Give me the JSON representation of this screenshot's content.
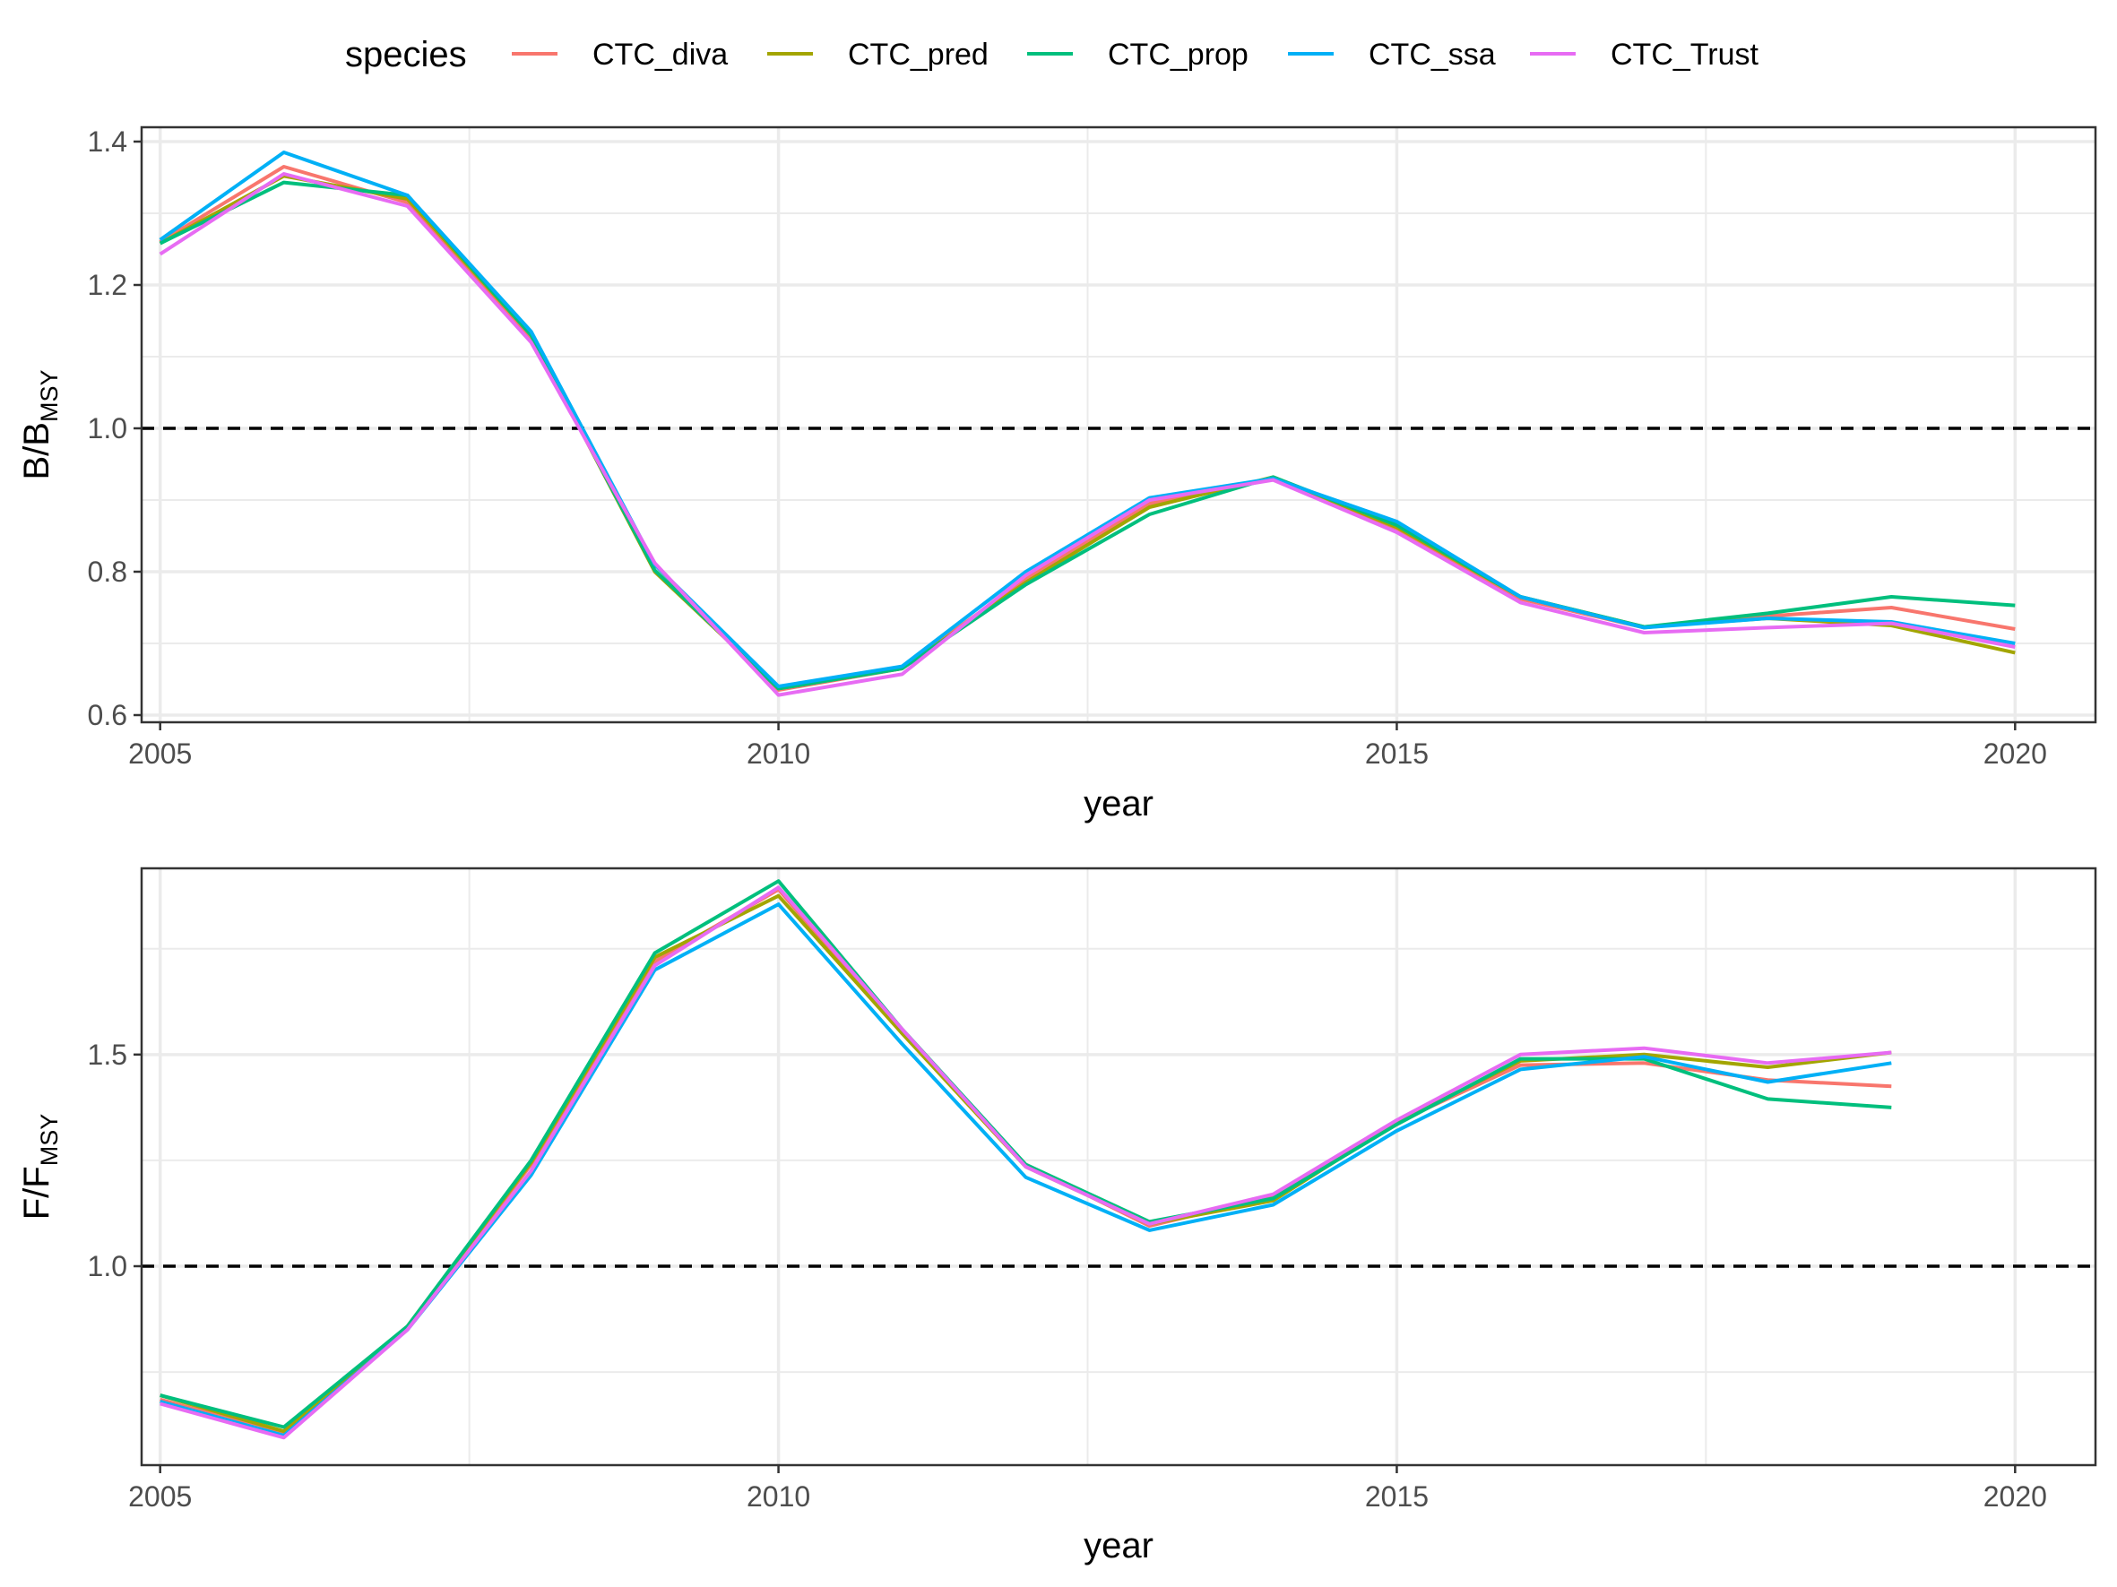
{
  "legend": {
    "title": "species"
  },
  "chart_data": [
    {
      "type": "line",
      "panel": "top",
      "ylabel_main": "B/B",
      "ylabel_sub": "MSY",
      "xlabel": "year",
      "xlim": [
        2004.85,
        2020.65
      ],
      "ylim": [
        0.59,
        1.42
      ],
      "xticks": [
        2005,
        2010,
        2015,
        2020
      ],
      "yticks": [
        0.6,
        0.8,
        1.0,
        1.2,
        1.4
      ],
      "ytick_labels": [
        "0.6",
        "0.8",
        "1.0",
        "1.2",
        "1.4"
      ],
      "reference_line": 1.0,
      "x": [
        2005,
        2006,
        2007,
        2008,
        2009,
        2010,
        2011,
        2012,
        2013,
        2014,
        2015,
        2016,
        2017,
        2018,
        2019,
        2020
      ],
      "series": [
        {
          "name": "CTC_diva",
          "color": "#F8766D",
          "values": [
            1.26,
            1.365,
            1.315,
            1.125,
            0.81,
            0.635,
            0.665,
            0.79,
            0.895,
            0.93,
            0.86,
            0.762,
            0.722,
            0.738,
            0.75,
            0.72
          ]
        },
        {
          "name": "CTC_pred",
          "color": "#A3A500",
          "values": [
            1.258,
            1.352,
            1.32,
            1.13,
            0.8,
            0.637,
            0.665,
            0.785,
            0.89,
            0.932,
            0.862,
            0.765,
            0.723,
            0.735,
            0.725,
            0.687
          ]
        },
        {
          "name": "CTC_prop",
          "color": "#00BF7D",
          "values": [
            1.258,
            1.343,
            1.325,
            1.13,
            0.802,
            0.637,
            0.665,
            0.782,
            0.88,
            0.932,
            0.865,
            0.765,
            0.723,
            0.742,
            0.765,
            0.753
          ]
        },
        {
          "name": "CTC_ssa",
          "color": "#00B0F6",
          "values": [
            1.263,
            1.385,
            1.325,
            1.135,
            0.81,
            0.64,
            0.668,
            0.8,
            0.903,
            0.93,
            0.87,
            0.765,
            0.722,
            0.735,
            0.73,
            0.7
          ]
        },
        {
          "name": "CTC_Trust",
          "color": "#E76BF3",
          "values": [
            1.243,
            1.355,
            1.31,
            1.12,
            0.812,
            0.628,
            0.657,
            0.795,
            0.9,
            0.928,
            0.855,
            0.757,
            0.715,
            0.722,
            0.728,
            0.695
          ]
        }
      ]
    },
    {
      "type": "line",
      "panel": "bottom",
      "ylabel_main": "F/F",
      "ylabel_sub": "MSY",
      "xlabel": "year",
      "xlim": [
        2004.85,
        2020.65
      ],
      "ylim": [
        0.53,
        1.94
      ],
      "xticks": [
        2005,
        2010,
        2015,
        2020
      ],
      "yticks": [
        1.0,
        1.5
      ],
      "ytick_labels": [
        "1.0",
        "1.5"
      ],
      "reference_line": 1.0,
      "x": [
        2005,
        2006,
        2007,
        2008,
        2009,
        2010,
        2011,
        2012,
        2013,
        2014,
        2015,
        2016,
        2017,
        2018,
        2019
      ],
      "series": [
        {
          "name": "CTC_diva",
          "color": "#F8766D",
          "values": [
            0.685,
            0.605,
            0.855,
            1.24,
            1.72,
            1.89,
            1.55,
            1.24,
            1.095,
            1.165,
            1.34,
            1.475,
            1.48,
            1.44,
            1.425
          ]
        },
        {
          "name": "CTC_pred",
          "color": "#A3A500",
          "values": [
            0.695,
            0.61,
            0.858,
            1.245,
            1.73,
            1.875,
            1.55,
            1.235,
            1.1,
            1.155,
            1.34,
            1.485,
            1.5,
            1.47,
            1.505
          ]
        },
        {
          "name": "CTC_prop",
          "color": "#00BF7D",
          "values": [
            0.695,
            0.62,
            0.858,
            1.25,
            1.74,
            1.91,
            1.56,
            1.24,
            1.105,
            1.16,
            1.335,
            1.49,
            1.49,
            1.395,
            1.375
          ]
        },
        {
          "name": "CTC_ssa",
          "color": "#00B0F6",
          "values": [
            0.68,
            0.6,
            0.85,
            1.215,
            1.7,
            1.855,
            1.525,
            1.21,
            1.085,
            1.145,
            1.32,
            1.465,
            1.495,
            1.435,
            1.48
          ]
        },
        {
          "name": "CTC_Trust",
          "color": "#E76BF3",
          "values": [
            0.675,
            0.595,
            0.85,
            1.225,
            1.71,
            1.895,
            1.56,
            1.235,
            1.1,
            1.17,
            1.345,
            1.5,
            1.515,
            1.48,
            1.505
          ]
        }
      ]
    }
  ]
}
